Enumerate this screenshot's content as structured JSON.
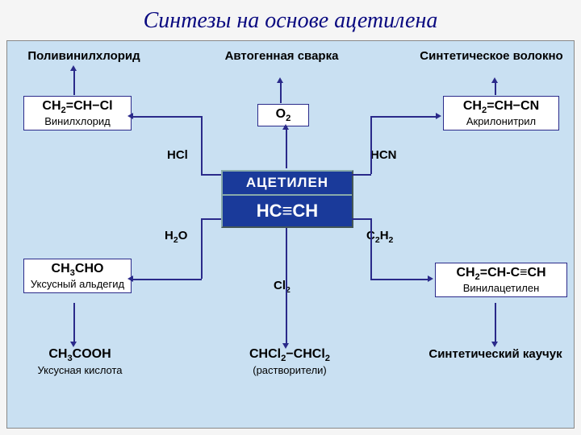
{
  "title": "Синтезы на основе ацетилена",
  "colors": {
    "title": "#0a0a80",
    "diagram_bg": "#c9e0f2",
    "box_border": "#2a2a8a",
    "center_bg": "#1a3a9a",
    "center_text": "#ffffff",
    "arrow": "#2a2a8a"
  },
  "center": {
    "name": "АЦЕТИЛЕН",
    "formula": "HC≡CH"
  },
  "nodes": {
    "pvc": "Поливинилхлорид",
    "vinylchloride_f": "CH₂=CH−Cl",
    "vinylchloride_n": "Винилхлорид",
    "autogen": "Автогенная сварка",
    "o2": "O₂",
    "synthfiber": "Синтетическое волокно",
    "acrylo_f": "CH₂=CH−CN",
    "acrylo_n": "Акрилонитрил",
    "hcl": "HCl",
    "hcn": "HCN",
    "h2o": "H₂O",
    "c2h2": "C₂H₂",
    "ald_f": "CH₃CHO",
    "ald_n": "Уксусный альдегид",
    "vinylacet_f": "CH₂=CH-C≡CH",
    "vinylacet_n": "Винилацетилен",
    "cl2": "Cl₂",
    "acid_f": "CH₃COOH",
    "acid_n": "Уксусная кислота",
    "solvent_f": "CHCl₂−CHCl₂",
    "solvent_n": "(растворители)",
    "rubber": "Синтетический каучук"
  }
}
